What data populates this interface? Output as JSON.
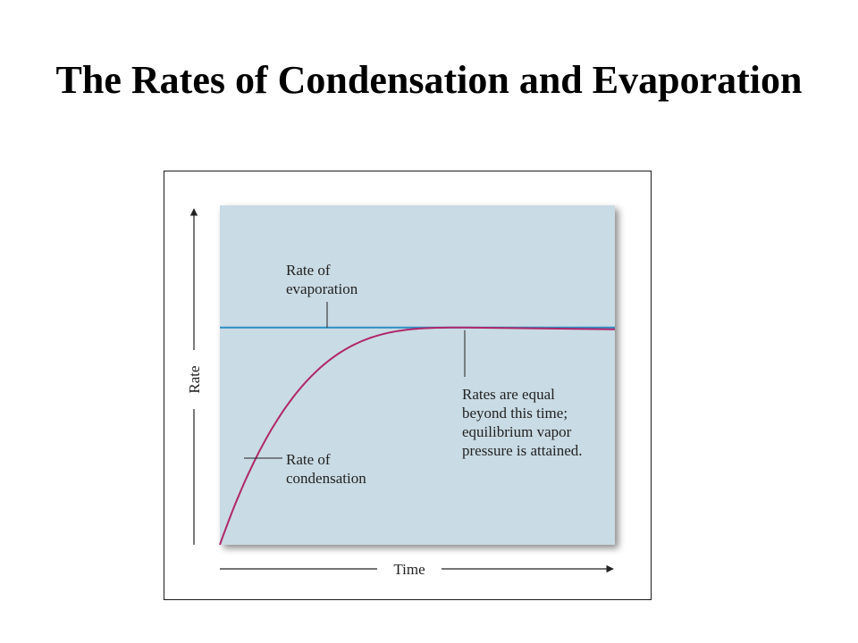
{
  "slide": {
    "title": "The Rates of Condensation and Evaporation"
  },
  "chart_data": {
    "type": "line",
    "xlabel": "Time",
    "ylabel": "Rate",
    "xlim": [
      0,
      1
    ],
    "ylim": [
      0,
      1
    ],
    "grid": false,
    "colors": {
      "plot_background": "#c9dbe4",
      "evaporation": "#2a8fc4",
      "condensation": "#b0266a",
      "text": "#222222"
    },
    "series": [
      {
        "key": "evaporation",
        "label_lines": [
          "Rate of",
          "evaporation"
        ],
        "equation": "constant",
        "equilibrium_rate": 0.64
      },
      {
        "key": "condensation",
        "label_lines": [
          "Rate of",
          "condensation"
        ],
        "equation": "rises from zero toward the evaporation rate",
        "start_rate": 0,
        "equilibrium_rate": 0.64,
        "equilibrium_time": 0.62
      }
    ],
    "annotations": [
      {
        "key": "equilibrium",
        "lines": [
          "Rates are equal",
          "beyond this time;",
          "equilibrium vapor",
          "pressure is attained."
        ]
      }
    ]
  }
}
